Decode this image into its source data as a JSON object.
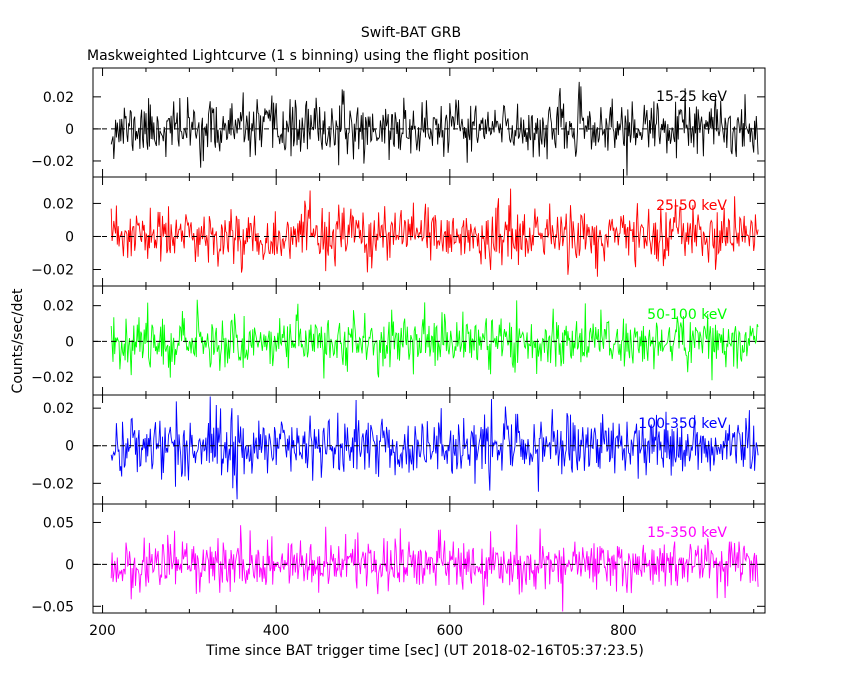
{
  "chart_data": {
    "type": "line",
    "title": "Swift-BAT GRB",
    "subtitle": "Maskweighted Lightcurve (1 s binning) using the flight position",
    "xlabel": "Time since BAT trigger time [sec] (UT 2018-02-16T05:37:23.5)",
    "ylabel": "Counts/sec/det",
    "xlim": [
      189,
      963
    ],
    "x_ticks": [
      200,
      400,
      600,
      800
    ],
    "x_tick_labels": [
      "200",
      "400",
      "600",
      "800"
    ],
    "data_x_range": [
      210,
      955
    ],
    "binning_sec": 1,
    "panels": [
      {
        "name": "15-25 keV",
        "color": "#000000",
        "ylim": [
          -0.03,
          0.038
        ],
        "y_ticks": [
          -0.02,
          0,
          0.02
        ],
        "y_tick_labels": [
          "−0.02",
          "0",
          "0.02"
        ],
        "noise_sigma": 0.0085,
        "seed": 11
      },
      {
        "name": "25-50 keV",
        "color": "#ff0000",
        "ylim": [
          -0.03,
          0.036
        ],
        "y_ticks": [
          -0.02,
          0,
          0.02
        ],
        "y_tick_labels": [
          "−0.02",
          "0",
          "0.02"
        ],
        "noise_sigma": 0.0085,
        "seed": 23
      },
      {
        "name": "50-100 keV",
        "color": "#00ff00",
        "ylim": [
          -0.03,
          0.031
        ],
        "y_ticks": [
          -0.02,
          0,
          0.02
        ],
        "y_tick_labels": [
          "−0.02",
          "0",
          "0.02"
        ],
        "noise_sigma": 0.0075,
        "seed": 37
      },
      {
        "name": "100-350 keV",
        "color": "#0000ff",
        "ylim": [
          -0.031,
          0.027
        ],
        "y_ticks": [
          -0.02,
          0,
          0.02
        ],
        "y_tick_labels": [
          "−0.02",
          "0",
          "0.02"
        ],
        "noise_sigma": 0.0085,
        "seed": 41
      },
      {
        "name": "15-350 keV",
        "color": "#ff00ff",
        "ylim": [
          -0.058,
          0.072
        ],
        "y_ticks": [
          -0.05,
          0,
          0.05
        ],
        "y_tick_labels": [
          "−0.05",
          "0",
          "0.05"
        ],
        "noise_sigma": 0.016,
        "seed": 59
      }
    ],
    "zero_line": true,
    "legend": "band label inside each panel, top-right"
  }
}
